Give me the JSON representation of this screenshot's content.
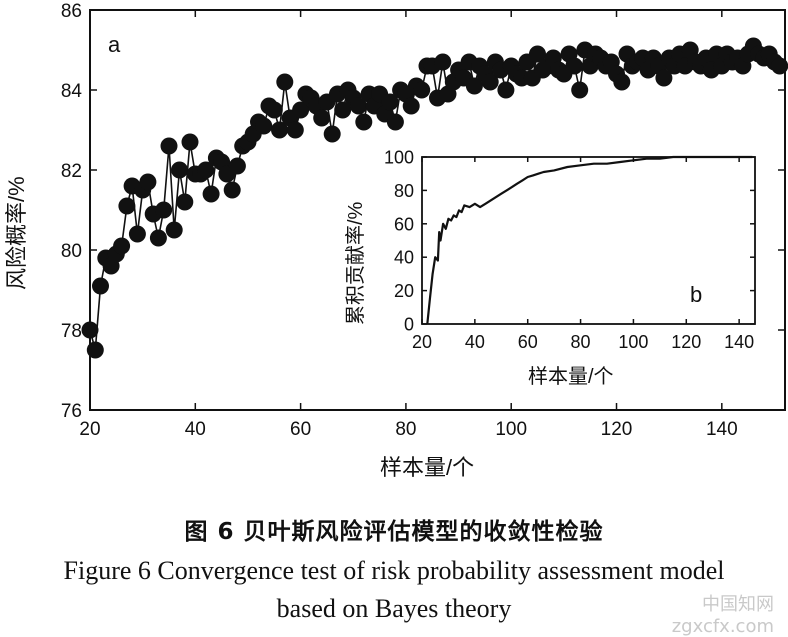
{
  "chart_data": [
    {
      "id": "main",
      "type": "line",
      "panel_label": "a",
      "xlabel": "样本量/个",
      "ylabel": "风险概率/%",
      "xlim": [
        20,
        152
      ],
      "ylim": [
        76,
        86
      ],
      "xticks": [
        20,
        40,
        60,
        80,
        100,
        120,
        140
      ],
      "yticks": [
        76,
        78,
        80,
        82,
        84,
        86
      ],
      "marker": "filled-circle",
      "grid": false,
      "series": [
        {
          "x": [
            20,
            21,
            22,
            23,
            24,
            25,
            26,
            27,
            28,
            29,
            30,
            31,
            32,
            33,
            34,
            35,
            36,
            37,
            38,
            39,
            40,
            41,
            42,
            43,
            44,
            45,
            46,
            47,
            48,
            49,
            50,
            51,
            52,
            53,
            54,
            55,
            56,
            57,
            58,
            59,
            60,
            61,
            62,
            63,
            64,
            65,
            66,
            67,
            68,
            69,
            70,
            71,
            72,
            73,
            74,
            75,
            76,
            77,
            78,
            79,
            80,
            81,
            82,
            83,
            84,
            85,
            86,
            87,
            88,
            89,
            90,
            91,
            92,
            93,
            94,
            95,
            96,
            97,
            98,
            99,
            100,
            101,
            102,
            103,
            104,
            105,
            106,
            107,
            108,
            109,
            110,
            111,
            112,
            113,
            114,
            115,
            116,
            117,
            118,
            119,
            120,
            121,
            122,
            123,
            124,
            125,
            126,
            127,
            128,
            129,
            130,
            131,
            132,
            133,
            134,
            135,
            136,
            137,
            138,
            139,
            140,
            141,
            142,
            143,
            144,
            145,
            146,
            147,
            148,
            149,
            150,
            151
          ],
          "y": [
            78.0,
            77.5,
            79.1,
            79.8,
            79.6,
            79.9,
            80.1,
            81.1,
            81.6,
            80.4,
            81.5,
            81.7,
            80.9,
            80.3,
            81.0,
            82.6,
            80.5,
            82.0,
            81.2,
            82.7,
            81.9,
            81.9,
            82.0,
            81.4,
            82.3,
            82.2,
            81.9,
            81.5,
            82.1,
            82.6,
            82.7,
            82.9,
            83.2,
            83.1,
            83.6,
            83.5,
            83.0,
            84.2,
            83.3,
            83.0,
            83.5,
            83.9,
            83.8,
            83.6,
            83.3,
            83.7,
            82.9,
            83.9,
            83.5,
            84.0,
            83.8,
            83.6,
            83.2,
            83.9,
            83.6,
            83.9,
            83.4,
            83.7,
            83.2,
            84.0,
            83.9,
            83.6,
            84.1,
            84.0,
            84.6,
            84.6,
            83.8,
            84.7,
            83.9,
            84.2,
            84.5,
            84.3,
            84.7,
            84.1,
            84.6,
            84.4,
            84.2,
            84.7,
            84.5,
            84.0,
            84.6,
            84.4,
            84.3,
            84.7,
            84.3,
            84.9,
            84.5,
            84.6,
            84.8,
            84.5,
            84.4,
            84.9,
            84.6,
            84.0,
            85.0,
            84.6,
            84.9,
            84.8,
            84.6,
            84.7,
            84.4,
            84.2,
            84.9,
            84.6,
            84.7,
            84.8,
            84.5,
            84.8,
            84.6,
            84.3,
            84.8,
            84.6,
            84.9,
            84.6,
            85.0,
            84.7,
            84.6,
            84.8,
            84.5,
            84.9,
            84.6,
            84.9,
            84.7,
            84.8,
            84.6,
            84.9,
            85.1,
            84.9,
            84.8,
            84.9,
            84.7,
            84.6
          ]
        }
      ]
    },
    {
      "id": "inset",
      "type": "line",
      "panel_label": "b",
      "xlabel": "样本量/个",
      "ylabel": "累积贡献率/%",
      "xlim": [
        20,
        146
      ],
      "ylim": [
        0,
        100
      ],
      "xticks": [
        20,
        40,
        60,
        80,
        100,
        120,
        140
      ],
      "yticks": [
        0,
        20,
        40,
        60,
        80,
        100
      ],
      "grid": false,
      "series": [
        {
          "x": [
            22,
            23,
            24,
            25,
            26,
            26.5,
            27,
            28,
            29,
            30,
            31,
            32,
            33,
            34,
            35,
            36,
            38,
            40,
            42,
            44,
            46,
            48,
            50,
            52,
            54,
            56,
            58,
            60,
            62,
            64,
            66,
            70,
            75,
            80,
            85,
            90,
            95,
            100,
            105,
            110,
            115,
            120,
            125,
            130,
            135,
            140,
            145
          ],
          "y": [
            0,
            15,
            30,
            40,
            38,
            55,
            50,
            60,
            57,
            63,
            62,
            65,
            64,
            68,
            67,
            71,
            70,
            72,
            70,
            72,
            74,
            76,
            78,
            80,
            82,
            84,
            86,
            88,
            89,
            90,
            91,
            92,
            94,
            95,
            96,
            96,
            97,
            98,
            99,
            99,
            100,
            100,
            100,
            100,
            100,
            100,
            100
          ]
        }
      ]
    }
  ],
  "caption": {
    "cn": "图 6   贝叶斯风险评估模型的收敛性检验",
    "en_line1": "Figure 6  Convergence test of risk probability assessment model",
    "en_line2": "based on Bayes theory"
  },
  "watermark": "中国知网 zgxcfx.com"
}
